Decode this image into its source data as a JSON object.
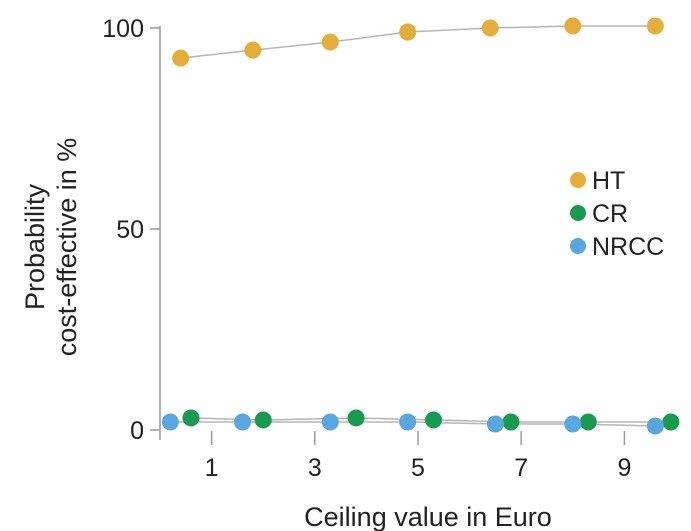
{
  "chart_data": {
    "type": "scatter",
    "xlabel": "Ceiling value in Euro",
    "ylabel": [
      "Probability",
      "cost-effective in %"
    ],
    "xlim": [
      0,
      10
    ],
    "ylim": [
      0,
      100
    ],
    "x_ticks": [
      1,
      3,
      5,
      7,
      9
    ],
    "y_ticks": [
      0,
      50,
      100
    ],
    "legend_position": "right",
    "connect_points": true,
    "series": [
      {
        "name": "HT",
        "color": "#E5AE3C",
        "x": [
          0.4,
          1.8,
          3.3,
          4.8,
          6.4,
          8.0,
          9.6
        ],
        "y": [
          92.5,
          94.5,
          96.5,
          99,
          100,
          100.5,
          100.5
        ]
      },
      {
        "name": "CR",
        "color": "#1A9A50",
        "x": [
          0.6,
          2.0,
          3.8,
          5.3,
          6.8,
          8.3,
          9.9
        ],
        "y": [
          3,
          2.5,
          3,
          2.5,
          2,
          2,
          2
        ]
      },
      {
        "name": "NRCC",
        "color": "#5AA7E0",
        "x": [
          0.2,
          1.6,
          3.3,
          4.8,
          6.5,
          8.0,
          9.6
        ],
        "y": [
          2,
          2,
          2,
          2,
          1.5,
          1.5,
          1
        ]
      }
    ]
  }
}
